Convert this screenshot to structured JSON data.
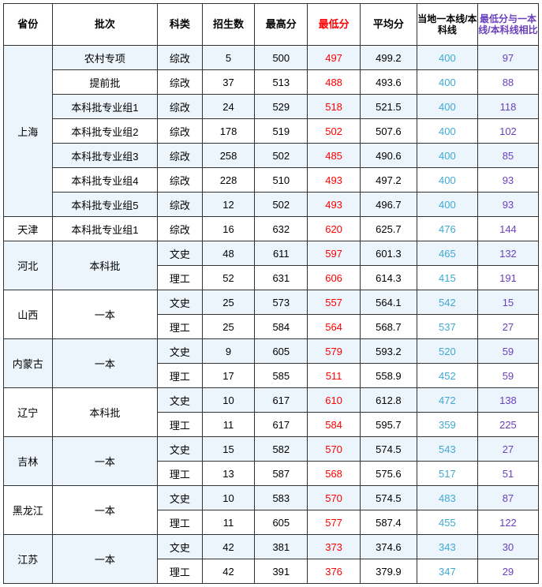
{
  "headers": {
    "province": "省份",
    "batch": "批次",
    "subject": "科类",
    "enroll": "招生数",
    "max": "最高分",
    "min": "最低分",
    "avg": "平均分",
    "local": "当地一本线/本科线",
    "diff": "最低分与一本线/本科线相比"
  },
  "rows": [
    {
      "alt": true,
      "province": "上海",
      "provinceRowspan": 7,
      "batch": "农村专项",
      "batchRowspan": 1,
      "subject": "综改",
      "enroll": 5,
      "max": 500,
      "min": 497,
      "avg": "499.2",
      "local": 400,
      "diff": 97
    },
    {
      "alt": false,
      "batch": "提前批",
      "batchRowspan": 1,
      "subject": "综改",
      "enroll": 37,
      "max": 513,
      "min": 488,
      "avg": "493.6",
      "local": 400,
      "diff": 88
    },
    {
      "alt": true,
      "batch": "本科批专业组1",
      "batchRowspan": 1,
      "subject": "综改",
      "enroll": 24,
      "max": 529,
      "min": 518,
      "avg": "521.5",
      "local": 400,
      "diff": 118
    },
    {
      "alt": false,
      "batch": "本科批专业组2",
      "batchRowspan": 1,
      "subject": "综改",
      "enroll": 178,
      "max": 519,
      "min": 502,
      "avg": "507.6",
      "local": 400,
      "diff": 102
    },
    {
      "alt": true,
      "batch": "本科批专业组3",
      "batchRowspan": 1,
      "subject": "综改",
      "enroll": 258,
      "max": 502,
      "min": 485,
      "avg": "490.6",
      "local": 400,
      "diff": 85
    },
    {
      "alt": false,
      "batch": "本科批专业组4",
      "batchRowspan": 1,
      "subject": "综改",
      "enroll": 228,
      "max": 510,
      "min": 493,
      "avg": "497.2",
      "local": 400,
      "diff": 93
    },
    {
      "alt": true,
      "batch": "本科批专业组5",
      "batchRowspan": 1,
      "subject": "综改",
      "enroll": 12,
      "max": 502,
      "min": 493,
      "avg": "496.7",
      "local": 400,
      "diff": 93
    },
    {
      "alt": false,
      "province": "天津",
      "provinceRowspan": 1,
      "batch": "本科批专业组1",
      "batchRowspan": 1,
      "subject": "综改",
      "enroll": 16,
      "max": 632,
      "min": 620,
      "avg": "625.7",
      "local": 476,
      "diff": 144
    },
    {
      "alt": true,
      "province": "河北",
      "provinceRowspan": 2,
      "batch": "本科批",
      "batchRowspan": 2,
      "subject": "文史",
      "enroll": 48,
      "max": 611,
      "min": 597,
      "avg": "601.3",
      "local": 465,
      "diff": 132
    },
    {
      "alt": false,
      "subject": "理工",
      "enroll": 52,
      "max": 631,
      "min": 606,
      "avg": "614.3",
      "local": 415,
      "diff": 191
    },
    {
      "alt": true,
      "province": "山西",
      "provinceRowspan": 2,
      "provinceWhite": true,
      "batch": "一本",
      "batchRowspan": 2,
      "batchWhite": true,
      "subject": "文史",
      "enroll": 25,
      "max": 573,
      "min": 557,
      "avg": "564.1",
      "local": 542,
      "diff": 15
    },
    {
      "alt": false,
      "subject": "理工",
      "enroll": 25,
      "max": 584,
      "min": 564,
      "avg": "568.7",
      "local": 537,
      "diff": 27
    },
    {
      "alt": true,
      "province": "内蒙古",
      "provinceRowspan": 2,
      "batch": "一本",
      "batchRowspan": 2,
      "subject": "文史",
      "enroll": 9,
      "max": 605,
      "min": 579,
      "avg": "593.2",
      "local": 520,
      "diff": 59
    },
    {
      "alt": false,
      "subject": "理工",
      "enroll": 17,
      "max": 585,
      "min": 511,
      "avg": "558.9",
      "local": 452,
      "diff": 59
    },
    {
      "alt": true,
      "province": "辽宁",
      "provinceRowspan": 2,
      "provinceWhite": true,
      "batch": "本科批",
      "batchRowspan": 2,
      "batchWhite": true,
      "subject": "文史",
      "enroll": 10,
      "max": 617,
      "min": 610,
      "avg": "612.8",
      "local": 472,
      "diff": 138
    },
    {
      "alt": false,
      "subject": "理工",
      "enroll": 11,
      "max": 617,
      "min": 584,
      "avg": "595.7",
      "local": 359,
      "diff": 225
    },
    {
      "alt": true,
      "province": "吉林",
      "provinceRowspan": 2,
      "batch": "一本",
      "batchRowspan": 2,
      "subject": "文史",
      "enroll": 15,
      "max": 582,
      "min": 570,
      "avg": "574.5",
      "local": 543,
      "diff": 27
    },
    {
      "alt": false,
      "subject": "理工",
      "enroll": 13,
      "max": 587,
      "min": 568,
      "avg": "575.6",
      "local": 517,
      "diff": 51
    },
    {
      "alt": true,
      "province": "黑龙江",
      "provinceRowspan": 2,
      "provinceWhite": true,
      "batch": "一本",
      "batchRowspan": 2,
      "batchWhite": true,
      "subject": "文史",
      "enroll": 10,
      "max": 583,
      "min": 570,
      "avg": "574.5",
      "local": 483,
      "diff": 87
    },
    {
      "alt": false,
      "subject": "理工",
      "enroll": 11,
      "max": 605,
      "min": 577,
      "avg": "587.4",
      "local": 455,
      "diff": 122
    },
    {
      "alt": true,
      "province": "江苏",
      "provinceRowspan": 2,
      "batch": "一本",
      "batchRowspan": 2,
      "subject": "文史",
      "enroll": 42,
      "max": 381,
      "min": 373,
      "avg": "374.6",
      "local": 343,
      "diff": 30
    },
    {
      "alt": false,
      "subject": "理工",
      "enroll": 42,
      "max": 391,
      "min": 376,
      "avg": "379.9",
      "local": 347,
      "diff": 29
    }
  ]
}
